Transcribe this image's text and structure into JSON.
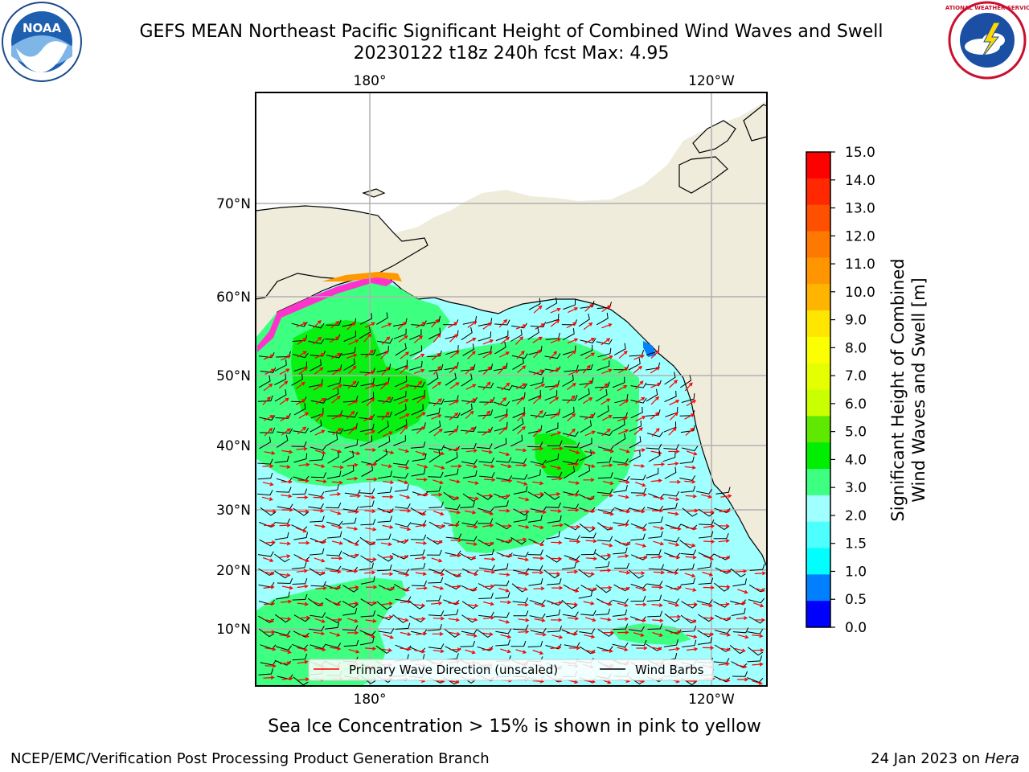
{
  "title": {
    "line1": "GEFS MEAN Northeast Pacific Significant Height of Combined Wind Waves and Swell",
    "line2": "20230122 t18z 240h fcst   Max: 4.95"
  },
  "map": {
    "lon_labels_top": [
      "180°",
      "120°W"
    ],
    "lon_labels_bottom": [
      "180°",
      "120°W"
    ],
    "lat_labels": [
      "70°N",
      "60°N",
      "50°N",
      "40°N",
      "30°N",
      "20°N",
      "10°N"
    ],
    "legend": {
      "wave": "Primary Wave Direction (unscaled)",
      "wind": "Wind Barbs"
    },
    "colors": {
      "land": "#efecdc",
      "wave_arrows": "#ff0000",
      "wind_barbs": "#000000",
      "grid": "#b0b0b0"
    }
  },
  "colorbar": {
    "title_line1": "Significant Height of Combined",
    "title_line2": "Wind Waves and Swell [m]",
    "ticks": [
      "15.0",
      "14.0",
      "13.0",
      "12.0",
      "11.0",
      "10.0",
      "9.0",
      "8.0",
      "7.0",
      "6.0",
      "5.0",
      "4.0",
      "3.0",
      "2.0",
      "1.5",
      "1.0",
      "0.5",
      "0.0"
    ],
    "colors_top_to_bottom": [
      "#ff0000",
      "#ff2800",
      "#ff5000",
      "#ff7800",
      "#ff9600",
      "#ffb400",
      "#ffe600",
      "#fbff00",
      "#e6ff00",
      "#caff00",
      "#5fe800",
      "#00ee00",
      "#3dff80",
      "#a0ffff",
      "#4dffff",
      "#00ffff",
      "#0080ff",
      "#0000ff"
    ]
  },
  "footer": {
    "ice_note": "Sea Ice Concentration > 15% is shown in pink to yellow",
    "credit": "NCEP/EMC/Verification Post Processing Product Generation Branch",
    "date": "24 Jan 2023 on",
    "host": "Hera"
  },
  "logos": {
    "noaa_text": "NOAA",
    "nws_text": "NATIONAL WEATHER SERVICE"
  }
}
